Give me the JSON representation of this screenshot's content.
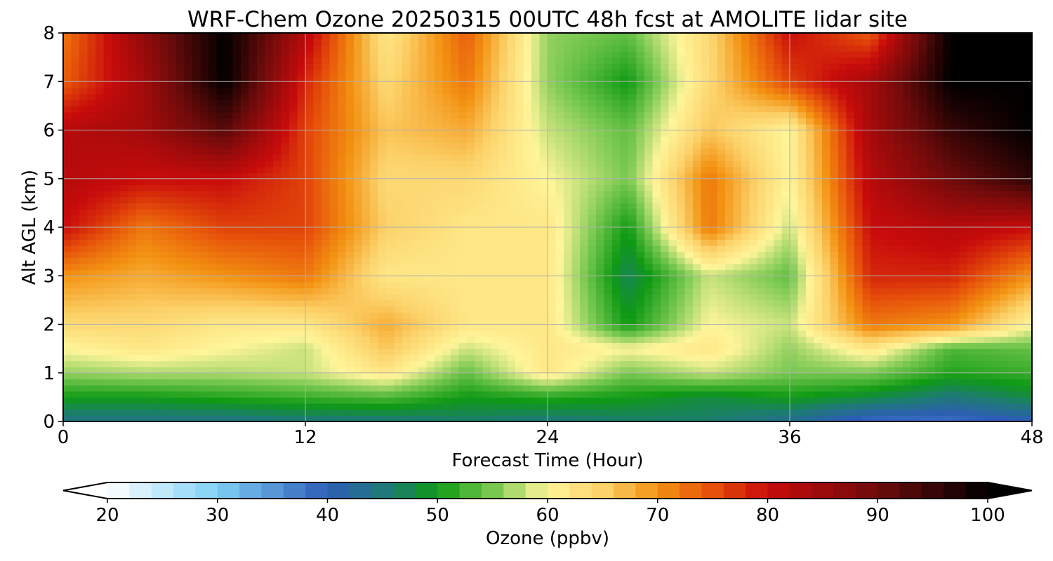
{
  "chart_data": {
    "type": "heatmap",
    "title": "WRF-Chem Ozone  20250315 00UTC 48h fcst at AMOLITE lidar site",
    "xlabel": "Forecast Time (Hour)",
    "ylabel": "Alt AGL (km)",
    "xlim": [
      0,
      48
    ],
    "ylim": [
      0,
      8
    ],
    "xticks": [
      "0",
      "12",
      "24",
      "36",
      "48"
    ],
    "yticks": [
      "0",
      "1",
      "2",
      "3",
      "4",
      "5",
      "6",
      "7",
      "8"
    ],
    "grid": true,
    "x_hours": [
      0,
      4,
      8,
      12,
      16,
      20,
      24,
      28,
      32,
      36,
      40,
      44,
      48
    ],
    "z_km": [
      0,
      0.5,
      1,
      1.5,
      2,
      3,
      4,
      5,
      6,
      7,
      8
    ],
    "ozone_ppbv": [
      [
        44,
        44,
        44,
        45,
        45,
        46,
        45,
        46,
        46,
        43,
        38,
        38,
        40
      ],
      [
        50,
        50,
        51,
        52,
        53,
        50,
        51,
        50,
        48,
        50,
        48,
        45,
        48
      ],
      [
        56,
        57,
        57,
        58,
        62,
        54,
        62,
        55,
        58,
        55,
        55,
        51,
        52
      ],
      [
        60,
        62,
        60,
        58,
        66,
        58,
        62,
        60,
        62,
        56,
        62,
        53,
        54
      ],
      [
        64,
        64,
        62,
        62,
        68,
        62,
        62,
        50,
        60,
        58,
        72,
        70,
        60
      ],
      [
        70,
        68,
        70,
        72,
        62,
        62,
        62,
        47,
        58,
        54,
        78,
        78,
        70
      ],
      [
        80,
        72,
        76,
        76,
        65,
        62,
        62,
        50,
        72,
        58,
        80,
        82,
        80
      ],
      [
        82,
        80,
        80,
        76,
        64,
        64,
        60,
        55,
        72,
        60,
        82,
        90,
        96
      ],
      [
        82,
        84,
        92,
        76,
        66,
        68,
        58,
        54,
        66,
        60,
        84,
        95,
        100
      ],
      [
        74,
        84,
        100,
        78,
        64,
        72,
        56,
        50,
        64,
        76,
        84,
        100,
        100
      ],
      [
        72,
        86,
        100,
        82,
        62,
        74,
        56,
        54,
        64,
        80,
        74,
        100,
        100
      ]
    ],
    "colorbar": {
      "label": "Ozone  (ppbv)",
      "min": 20,
      "max": 100,
      "ticks": [
        "20",
        "30",
        "40",
        "50",
        "60",
        "70",
        "80",
        "90",
        "100"
      ],
      "extend": "both",
      "stops": [
        [
          20,
          "#ffffff"
        ],
        [
          30,
          "#7fd0f5"
        ],
        [
          40,
          "#2e5cb8"
        ],
        [
          46,
          "#1c7d6e"
        ],
        [
          50,
          "#0f9a14"
        ],
        [
          55,
          "#78c850"
        ],
        [
          60,
          "#fff59a"
        ],
        [
          65,
          "#fcd26a"
        ],
        [
          70,
          "#f39212"
        ],
        [
          75,
          "#e6500a"
        ],
        [
          80,
          "#c80b0b"
        ],
        [
          90,
          "#6e0b0b"
        ],
        [
          100,
          "#000000"
        ]
      ]
    }
  }
}
